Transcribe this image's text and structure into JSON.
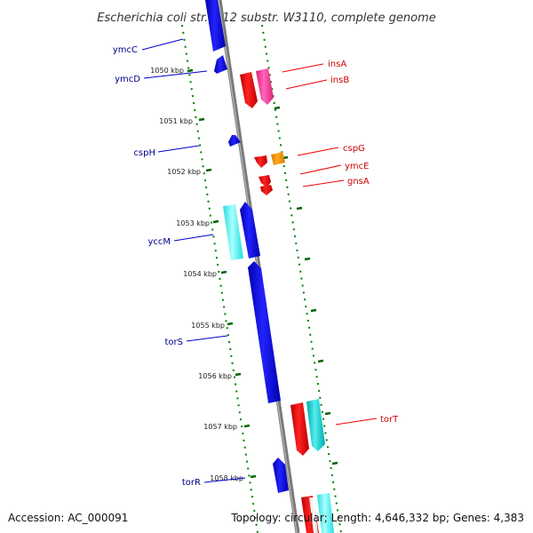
{
  "title": "Escherichia coli str. K-12 substr. W3110, complete genome",
  "accession": "Accession: AC_000091",
  "topology": "Topology: circular; Length: 4,646,332 bp; Genes: 4,383",
  "colors": {
    "backbone": "#808080",
    "forward_strand": "#0000ee",
    "reverse_red": "#ee0000",
    "reverse_magenta": "#ff3399",
    "reverse_orange": "#ff9900",
    "cyan_reverse": "#00c8c8",
    "cyan_forward": "#00ffff",
    "scale_dots": "#008000",
    "left_label": "#00008b",
    "right_label": "#cc0000"
  },
  "ticks": [
    {
      "label": "1050 kbp"
    },
    {
      "label": "1051 kbp"
    },
    {
      "label": "1052 kbp"
    },
    {
      "label": "1053 kbp"
    },
    {
      "label": "1054 kbp"
    },
    {
      "label": "1055 kbp"
    },
    {
      "label": "1056 kbp"
    },
    {
      "label": "1057 kbp"
    },
    {
      "label": "1058 kbp"
    }
  ],
  "left_genes": [
    {
      "name": "ymcC",
      "strand": "forward",
      "color": "blue"
    },
    {
      "name": "ymcD",
      "strand": "forward",
      "color": "blue"
    },
    {
      "name": "cspH",
      "strand": "forward",
      "color": "blue"
    },
    {
      "name": "yccM",
      "strand": "forward",
      "color": "cyan"
    },
    {
      "name": "torS",
      "strand": "forward",
      "color": "blue"
    },
    {
      "name": "torR",
      "strand": "forward",
      "color": "blue"
    }
  ],
  "right_genes": [
    {
      "name": "insA",
      "strand": "reverse",
      "color": "red"
    },
    {
      "name": "insB",
      "strand": "reverse",
      "color": "magenta"
    },
    {
      "name": "cspG",
      "strand": "reverse",
      "color": "orange"
    },
    {
      "name": "ymcE",
      "strand": "reverse",
      "color": "red"
    },
    {
      "name": "gnsA",
      "strand": "reverse",
      "color": "red"
    },
    {
      "name": "torT",
      "strand": "reverse",
      "color": "cyan"
    }
  ]
}
